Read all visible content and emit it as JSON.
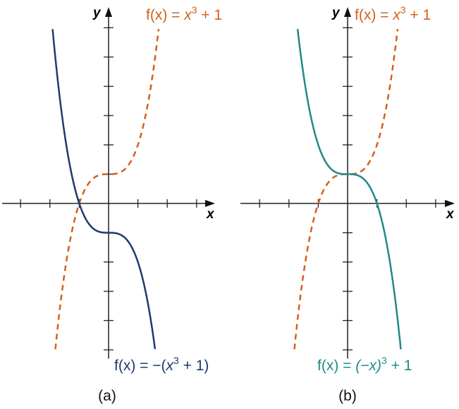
{
  "chart_data": [
    {
      "type": "line",
      "caption": "(a)",
      "xlabel": "x",
      "ylabel": "y",
      "xlim": [
        -3.6,
        3.6
      ],
      "ylim": [
        -5,
        6
      ],
      "x_ticks": [
        -3,
        -2,
        -1,
        0,
        1,
        2,
        3
      ],
      "y_ticks": [
        -5,
        -4,
        -3,
        -2,
        -1,
        0,
        1,
        2,
        3,
        4,
        5,
        6
      ],
      "series": [
        {
          "name": "f(x) = x³ + 1",
          "label_parts": {
            "lhs": "f(x) = ",
            "base": "x",
            "exp": "3",
            "rest": " + 1"
          },
          "expr": "x^3+1",
          "style": "dashed",
          "color": "#d4601a"
        },
        {
          "name": "f(x) = −(x³ + 1)",
          "label_parts": {
            "lhs": "f(x) = −(",
            "base": "x",
            "exp": "3",
            "rest": " + 1)"
          },
          "expr": "-(x^3+1)",
          "style": "solid",
          "color": "#1f3a6e"
        }
      ]
    },
    {
      "type": "line",
      "caption": "(b)",
      "xlabel": "x",
      "ylabel": "y",
      "xlim": [
        -3.6,
        3.6
      ],
      "ylim": [
        -5,
        6
      ],
      "x_ticks": [
        -3,
        -2,
        -1,
        0,
        1,
        2,
        3
      ],
      "y_ticks": [
        -5,
        -4,
        -3,
        -2,
        -1,
        0,
        1,
        2,
        3,
        4,
        5,
        6
      ],
      "series": [
        {
          "name": "f(x) = x³ + 1",
          "label_parts": {
            "lhs": "f(x) = ",
            "base": "x",
            "exp": "3",
            "rest": " + 1"
          },
          "expr": "x^3+1",
          "style": "dashed",
          "color": "#d4601a"
        },
        {
          "name": "f(x) = (−x)³ + 1",
          "label_parts": {
            "lhs": "f(x) = ",
            "base": "(−x)",
            "exp": "3",
            "rest": " + 1"
          },
          "expr": "(-x)^3+1",
          "style": "solid",
          "color": "#1f8a8a"
        }
      ]
    }
  ]
}
